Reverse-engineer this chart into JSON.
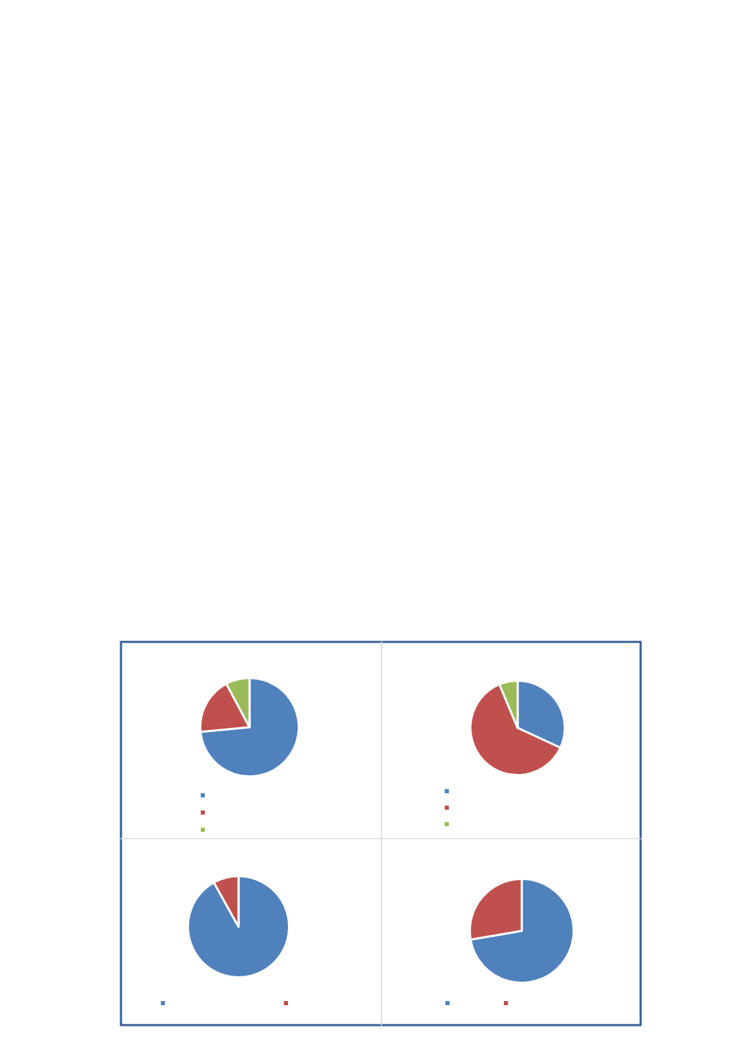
{
  "chart_data": [
    {
      "type": "pie",
      "categories": [
        null,
        null,
        null
      ],
      "values": [
        73.5,
        18.7,
        7.8
      ],
      "colors": [
        "#4f81bd",
        "#c0504d",
        "#9bbb59"
      ]
    },
    {
      "type": "pie",
      "categories": [
        null,
        null,
        null
      ],
      "values": [
        31.9,
        61.8,
        6.3
      ],
      "colors": [
        "#4f81bd",
        "#c0504d",
        "#9bbb59"
      ]
    },
    {
      "type": "pie",
      "categories": [
        null,
        null
      ],
      "values": [
        91.9,
        8.1
      ],
      "colors": [
        "#4f81bd",
        "#c0504d"
      ]
    },
    {
      "type": "pie",
      "categories": [
        null,
        null
      ],
      "values": [
        72.3,
        27.7
      ],
      "colors": [
        "#4f81bd",
        "#c0504d"
      ]
    }
  ]
}
